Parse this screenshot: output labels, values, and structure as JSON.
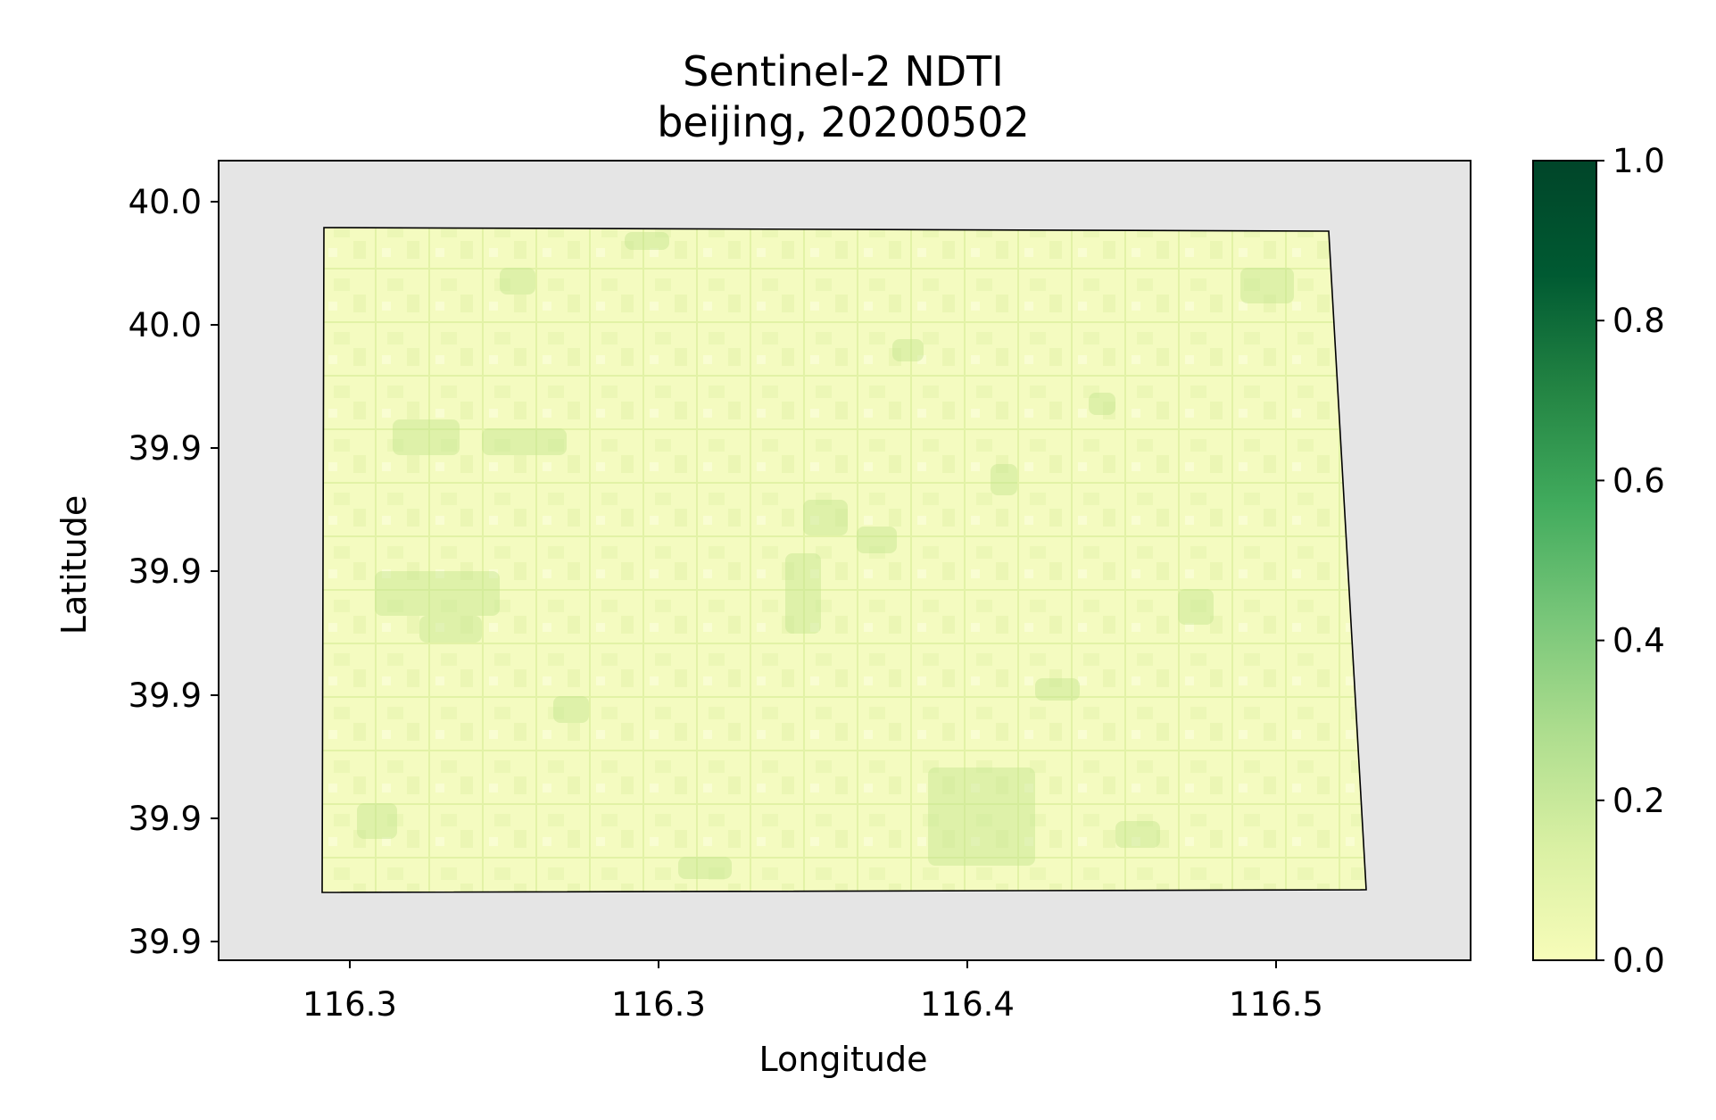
{
  "chart_data": {
    "type": "heatmap",
    "title": "Sentinel-2 NDTI",
    "subtitle": "beijing, 20200502",
    "xlabel": "Longitude",
    "ylabel": "Latitude",
    "x_tick_labels": [
      "116.3",
      "116.3",
      "116.4",
      "116.5"
    ],
    "y_tick_labels": [
      "40.0",
      "40.0",
      "39.9",
      "39.9",
      "39.9",
      "39.9",
      "39.9"
    ],
    "colorbar": {
      "colormap": "Greens",
      "range": [
        0.0,
        1.0
      ],
      "tick_labels": [
        "0.0",
        "0.2",
        "0.4",
        "0.6",
        "0.8",
        "1.0"
      ],
      "tick_values": [
        0.0,
        0.2,
        0.4,
        0.6,
        0.8,
        1.0
      ],
      "stops": [
        "#f7fcb9",
        "#d9f0a3",
        "#addd8e",
        "#78c679",
        "#41ab5d",
        "#238443",
        "#005a32",
        "#004529"
      ]
    },
    "raster_value_range_observed": [
      0.05,
      0.3
    ],
    "nodata_color": "#e5e5e5",
    "image_fill_light": "#f7fcc4",
    "image_fill_dark": "#c4e48e",
    "grid": false
  }
}
